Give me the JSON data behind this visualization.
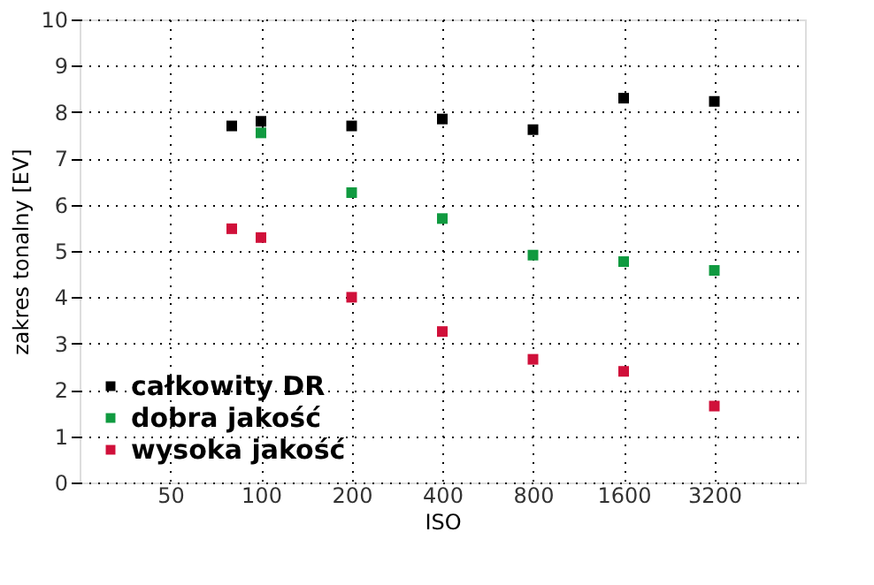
{
  "chart_data": {
    "type": "scatter",
    "xlabel": "ISO",
    "ylabel": "zakres tonalny [EV]",
    "x": [
      80,
      100,
      200,
      400,
      800,
      1600,
      3200
    ],
    "series": [
      {
        "name": "całkowity DR",
        "color": "#000000",
        "values": [
          7.7,
          7.8,
          7.7,
          7.85,
          7.62,
          8.3,
          8.23
        ]
      },
      {
        "name": "dobra jakość",
        "color": "#109a40",
        "values": [
          null,
          7.55,
          6.26,
          5.7,
          4.91,
          4.77,
          4.58
        ]
      },
      {
        "name": "wysoka jakość",
        "color": "#d0103a",
        "values": [
          5.48,
          5.29,
          4.0,
          3.26,
          2.66,
          2.4,
          1.65
        ]
      }
    ],
    "log": "x",
    "xlim": [
      25,
      6400
    ],
    "xticks": [
      50,
      100,
      200,
      400,
      800,
      1600,
      3200
    ],
    "ylim": [
      0,
      10
    ],
    "yticks": [
      0,
      1,
      2,
      3,
      4,
      5,
      6,
      7,
      8,
      9,
      10
    ],
    "grid": true,
    "legend": "bottom left",
    "marker": "square"
  }
}
